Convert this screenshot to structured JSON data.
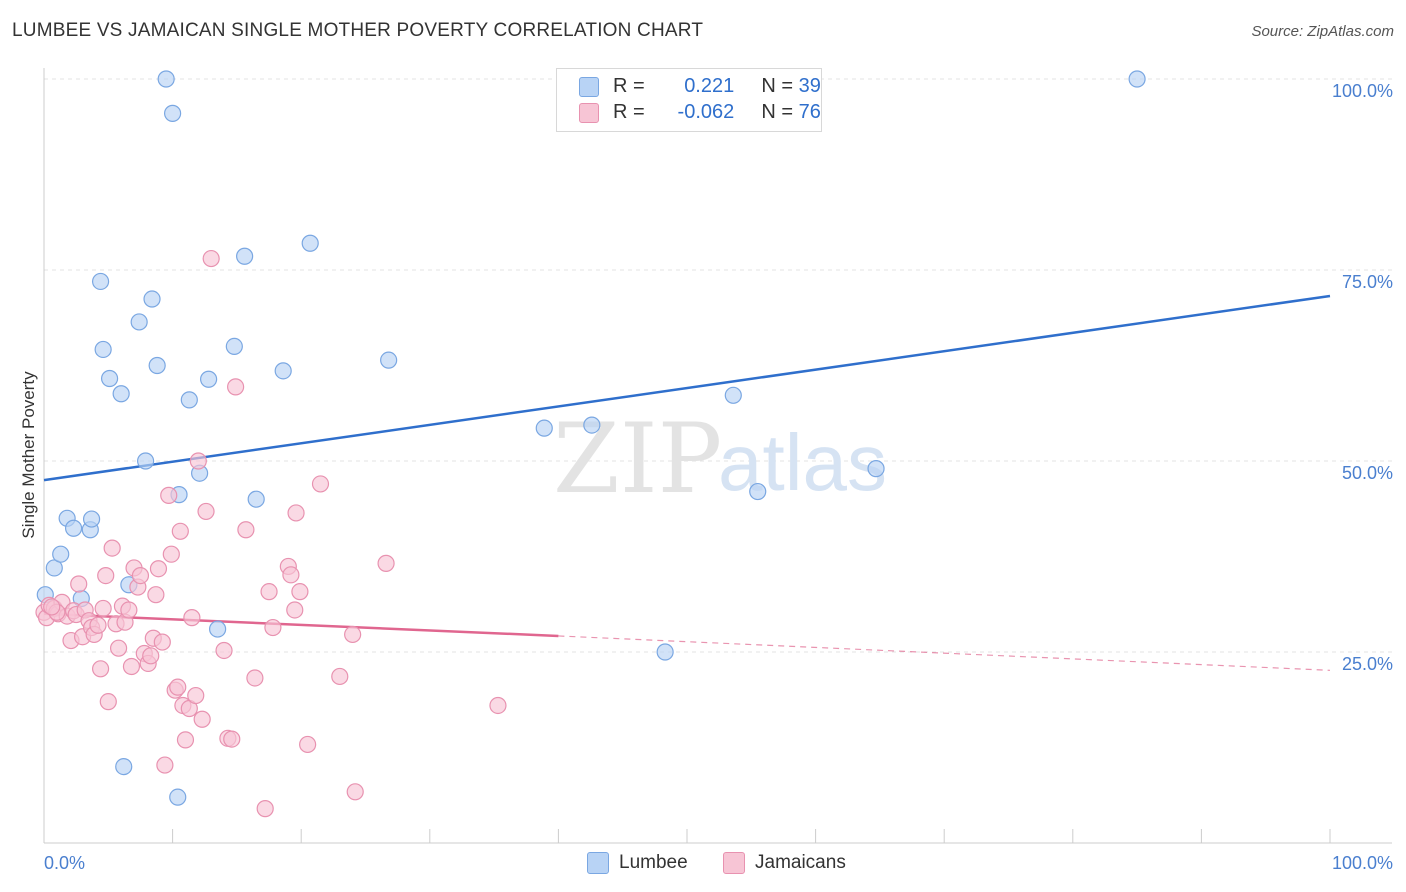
{
  "title": "LUMBEE VS JAMAICAN SINGLE MOTHER POVERTY CORRELATION CHART",
  "source": "Source: ZipAtlas.com",
  "watermark": {
    "zip": "ZIP",
    "atlas": "atlas"
  },
  "legend": {
    "rows": [
      {
        "r_label": "R =",
        "r_value": "0.221",
        "n_label": "N =",
        "n_value": "39"
      },
      {
        "r_label": "R =",
        "r_value": "-0.062",
        "n_label": "N =",
        "n_value": "76"
      }
    ]
  },
  "colors": {
    "lumbee_fill": "#b8d3f5",
    "lumbee_stroke": "#7aa7e2",
    "lumbee_line": "#2f6fcc",
    "jamaican_fill": "#f7c5d5",
    "jamaican_stroke": "#e892b0",
    "jamaican_line": "#e0668f",
    "grid": "#e3e3e3",
    "tick_text": "#4a7fcf"
  },
  "chart_data": {
    "type": "scatter",
    "title": "LUMBEE VS JAMAICAN SINGLE MOTHER POVERTY CORRELATION CHART",
    "xlabel": "",
    "ylabel": "Single Mother Poverty",
    "xlim": [
      0,
      100
    ],
    "ylim": [
      0,
      100
    ],
    "x_tick_labels": [
      "0.0%",
      "100.0%"
    ],
    "y_ticks": [
      25,
      50,
      75,
      100
    ],
    "y_tick_labels": [
      "25.0%",
      "50.0%",
      "75.0%",
      "100.0%"
    ],
    "grid": true,
    "series": [
      {
        "name": "Lumbee",
        "r": 0.221,
        "n": 39,
        "trend": {
          "x0": 0,
          "y0": 47.5,
          "x1": 100,
          "y1": 71.6
        },
        "points": [
          [
            0.1,
            32.5
          ],
          [
            0.8,
            36.0
          ],
          [
            1.3,
            37.8
          ],
          [
            1.8,
            42.5
          ],
          [
            2.3,
            41.2
          ],
          [
            2.9,
            32.0
          ],
          [
            3.6,
            41.0
          ],
          [
            3.7,
            42.4
          ],
          [
            4.4,
            73.5
          ],
          [
            4.6,
            64.6
          ],
          [
            5.1,
            60.8
          ],
          [
            6.0,
            58.8
          ],
          [
            6.2,
            10.0
          ],
          [
            6.6,
            33.8
          ],
          [
            7.4,
            68.2
          ],
          [
            7.9,
            50.0
          ],
          [
            8.4,
            71.2
          ],
          [
            8.8,
            62.5
          ],
          [
            9.5,
            100.0
          ],
          [
            10.0,
            95.5
          ],
          [
            10.5,
            45.6
          ],
          [
            10.4,
            6.0
          ],
          [
            11.3,
            58.0
          ],
          [
            12.1,
            48.4
          ],
          [
            12.8,
            60.7
          ],
          [
            13.5,
            28.0
          ],
          [
            14.8,
            65.0
          ],
          [
            15.6,
            76.8
          ],
          [
            16.5,
            45.0
          ],
          [
            18.6,
            61.8
          ],
          [
            20.7,
            78.5
          ],
          [
            26.8,
            63.2
          ],
          [
            38.9,
            54.3
          ],
          [
            42.6,
            54.7
          ],
          [
            48.3,
            25.0
          ],
          [
            53.6,
            58.6
          ],
          [
            55.5,
            46.0
          ],
          [
            64.7,
            49.0
          ],
          [
            85.0,
            100.0
          ]
        ]
      },
      {
        "name": "Jamaicans",
        "r": -0.062,
        "n": 76,
        "trend": {
          "x0": 0,
          "y0": 30.0,
          "x1": 40,
          "y1": 27.1,
          "dash_to_x": 100,
          "dash_to_y": 22.6
        },
        "points": [
          [
            0.0,
            30.2
          ],
          [
            0.2,
            29.5
          ],
          [
            0.4,
            31.1
          ],
          [
            0.8,
            30.7
          ],
          [
            1.1,
            30.0
          ],
          [
            1.4,
            31.5
          ],
          [
            1.8,
            29.7
          ],
          [
            2.1,
            26.5
          ],
          [
            2.3,
            30.4
          ],
          [
            2.5,
            29.9
          ],
          [
            2.7,
            33.9
          ],
          [
            3.0,
            27.0
          ],
          [
            3.2,
            30.5
          ],
          [
            3.5,
            29.1
          ],
          [
            3.7,
            28.2
          ],
          [
            3.9,
            27.3
          ],
          [
            4.2,
            28.5
          ],
          [
            4.4,
            22.8
          ],
          [
            4.6,
            30.7
          ],
          [
            4.8,
            35.0
          ],
          [
            5.0,
            18.5
          ],
          [
            5.3,
            38.6
          ],
          [
            5.6,
            28.7
          ],
          [
            5.8,
            25.5
          ],
          [
            6.1,
            31.0
          ],
          [
            6.3,
            28.9
          ],
          [
            6.6,
            30.5
          ],
          [
            6.8,
            23.1
          ],
          [
            7.0,
            36.0
          ],
          [
            7.3,
            33.5
          ],
          [
            7.5,
            35.0
          ],
          [
            7.8,
            24.8
          ],
          [
            8.1,
            23.5
          ],
          [
            8.3,
            24.5
          ],
          [
            8.5,
            26.8
          ],
          [
            8.7,
            32.5
          ],
          [
            8.9,
            35.9
          ],
          [
            9.2,
            26.3
          ],
          [
            9.4,
            10.2
          ],
          [
            9.7,
            45.5
          ],
          [
            9.9,
            37.8
          ],
          [
            10.2,
            20.0
          ],
          [
            10.4,
            20.4
          ],
          [
            10.6,
            40.8
          ],
          [
            10.8,
            18.0
          ],
          [
            11.0,
            13.5
          ],
          [
            11.3,
            17.6
          ],
          [
            11.5,
            29.5
          ],
          [
            11.8,
            19.3
          ],
          [
            12.0,
            50.0
          ],
          [
            12.3,
            16.2
          ],
          [
            12.6,
            43.4
          ],
          [
            13.0,
            76.5
          ],
          [
            14.0,
            25.2
          ],
          [
            14.3,
            13.7
          ],
          [
            14.6,
            13.6
          ],
          [
            14.9,
            59.7
          ],
          [
            15.7,
            41.0
          ],
          [
            16.4,
            21.6
          ],
          [
            17.2,
            4.5
          ],
          [
            17.5,
            32.9
          ],
          [
            17.8,
            28.2
          ],
          [
            19.0,
            36.2
          ],
          [
            19.2,
            35.1
          ],
          [
            19.5,
            30.5
          ],
          [
            19.6,
            43.2
          ],
          [
            19.9,
            32.9
          ],
          [
            20.5,
            12.9
          ],
          [
            21.5,
            47.0
          ],
          [
            23.0,
            21.8
          ],
          [
            24.0,
            27.3
          ],
          [
            24.2,
            6.7
          ],
          [
            26.6,
            36.6
          ],
          [
            35.3,
            18.0
          ],
          [
            1.0,
            30.2
          ],
          [
            0.6,
            30.9
          ]
        ]
      }
    ]
  },
  "bottom_legend": [
    {
      "label": "Lumbee"
    },
    {
      "label": "Jamaicans"
    }
  ]
}
